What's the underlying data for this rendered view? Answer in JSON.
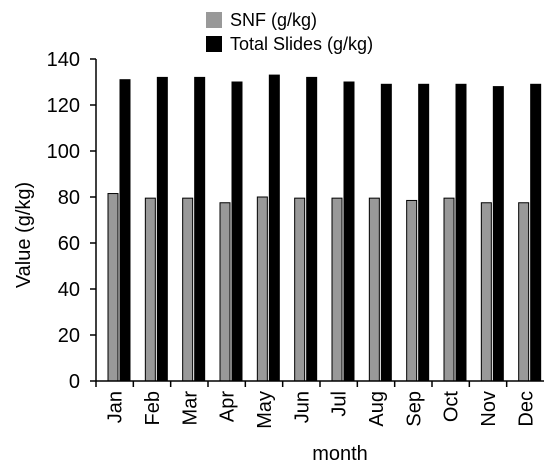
{
  "chart_data": {
    "type": "bar",
    "title": "",
    "xlabel": "month",
    "ylabel": "Value (g/kg)",
    "categories": [
      "Jan",
      "Feb",
      "Mar",
      "Apr",
      "May",
      "Jun",
      "Jul",
      "Aug",
      "Sep",
      "Oct",
      "Nov",
      "Dec"
    ],
    "series": [
      {
        "name": "SNF (g/kg)",
        "color": "#999999",
        "values": [
          81.5,
          79.5,
          79.5,
          77.5,
          80,
          79.5,
          79.5,
          79.5,
          78.5,
          79.5,
          77.5,
          77.5
        ]
      },
      {
        "name": "Total Slides (g/kg)",
        "color": "#000000",
        "values": [
          131,
          132,
          132,
          130,
          133,
          132,
          130,
          129,
          129,
          129,
          128,
          129
        ]
      }
    ],
    "ylim": [
      0,
      140
    ],
    "yticks": [
      0,
      20,
      40,
      60,
      80,
      100,
      120,
      140
    ],
    "grid": false,
    "legend_position": "top-center"
  }
}
